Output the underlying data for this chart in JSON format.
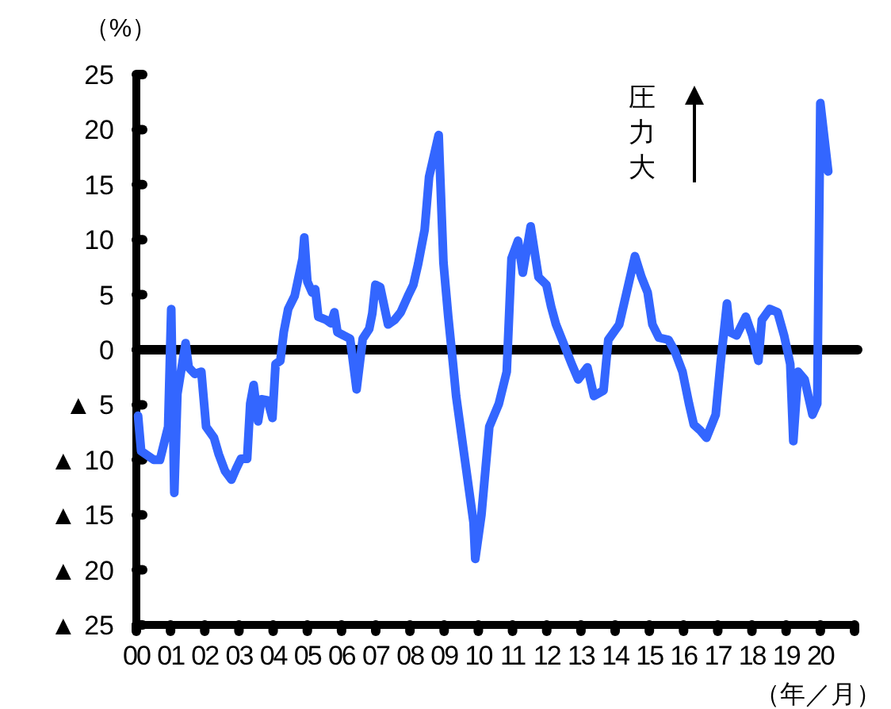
{
  "chart_data": {
    "type": "line",
    "xlabel": "（年／月）",
    "ylabel": "（%）",
    "annotations": [
      "圧力大"
    ],
    "xlim": [
      2000,
      2021
    ],
    "ylim": [
      -25,
      25
    ],
    "xticks": [
      {
        "value": 2000,
        "label": "00"
      },
      {
        "value": 2001,
        "label": "01"
      },
      {
        "value": 2002,
        "label": "02"
      },
      {
        "value": 2003,
        "label": "03"
      },
      {
        "value": 2004,
        "label": "04"
      },
      {
        "value": 2005,
        "label": "05"
      },
      {
        "value": 2006,
        "label": "06"
      },
      {
        "value": 2007,
        "label": "07"
      },
      {
        "value": 2008,
        "label": "08"
      },
      {
        "value": 2009,
        "label": "09"
      },
      {
        "value": 2010,
        "label": "10"
      },
      {
        "value": 2011,
        "label": "11"
      },
      {
        "value": 2012,
        "label": "12"
      },
      {
        "value": 2013,
        "label": "13"
      },
      {
        "value": 2014,
        "label": "14"
      },
      {
        "value": 2015,
        "label": "15"
      },
      {
        "value": 2016,
        "label": "16"
      },
      {
        "value": 2017,
        "label": "17"
      },
      {
        "value": 2018,
        "label": "18"
      },
      {
        "value": 2019,
        "label": "19"
      },
      {
        "value": 2020,
        "label": "20"
      },
      {
        "value": 2021,
        "label": null
      }
    ],
    "yticks": [
      {
        "value": -25,
        "label": "▲ 25"
      },
      {
        "value": -20,
        "label": "▲ 20"
      },
      {
        "value": -15,
        "label": "▲ 15"
      },
      {
        "value": -10,
        "label": "▲ 10"
      },
      {
        "value": -5,
        "label": "▲ 5"
      },
      0,
      5,
      10,
      15,
      20,
      25
    ],
    "ref_lines": [
      {
        "axis": "y",
        "value": 0,
        "color": "#000000"
      }
    ],
    "grid": false,
    "marker": "none",
    "line_style": "solid",
    "series": [
      {
        "color": "#3366ff",
        "x": [
          2000.05,
          2000.14,
          2000.51,
          2000.69,
          2000.93,
          2001.02,
          2001.11,
          2001.2,
          2001.44,
          2001.53,
          2001.71,
          2001.9,
          2002.04,
          2002.27,
          2002.41,
          2002.59,
          2002.78,
          2002.92,
          2003.06,
          2003.24,
          2003.33,
          2003.43,
          2003.56,
          2003.66,
          2003.84,
          2003.98,
          2004.07,
          2004.21,
          2004.31,
          2004.44,
          2004.63,
          2004.86,
          2004.91,
          2005.0,
          2005.14,
          2005.23,
          2005.32,
          2005.56,
          2005.69,
          2005.79,
          2005.88,
          2006.06,
          2006.25,
          2006.44,
          2006.62,
          2006.81,
          2006.9,
          2006.99,
          2007.13,
          2007.36,
          2007.55,
          2007.73,
          2007.96,
          2008.1,
          2008.24,
          2008.43,
          2008.56,
          2008.84,
          2008.98,
          2009.12,
          2009.26,
          2009.35,
          2009.86,
          2009.91,
          2010.09,
          2010.32,
          2010.6,
          2010.83,
          2010.97,
          2011.16,
          2011.3,
          2011.53,
          2011.76,
          2011.99,
          2012.13,
          2012.27,
          2012.73,
          2012.92,
          2013.19,
          2013.38,
          2013.66,
          2013.8,
          2014.12,
          2014.58,
          2014.77,
          2014.95,
          2015.09,
          2015.28,
          2015.56,
          2015.74,
          2015.97,
          2016.16,
          2016.3,
          2016.48,
          2016.67,
          2016.94,
          2017.08,
          2017.27,
          2017.36,
          2017.55,
          2017.82,
          2018.01,
          2018.19,
          2018.29,
          2018.52,
          2018.75,
          2018.94,
          2019.12,
          2019.21,
          2019.35,
          2019.54,
          2019.77,
          2019.91,
          2020.0,
          2020.23
        ],
        "values": [
          -6,
          -9.2,
          -10,
          -10,
          -7,
          3.7,
          -13,
          -4,
          0.6,
          -1.6,
          -2.2,
          -2,
          -7,
          -8,
          -9.5,
          -11,
          -11.8,
          -10.8,
          -9.9,
          -9.9,
          -4.9,
          -3.2,
          -6.5,
          -4.5,
          -4.6,
          -6.2,
          -1.3,
          -1,
          1.6,
          3.7,
          4.9,
          8.3,
          10.2,
          6.2,
          5.2,
          5.5,
          3,
          2.7,
          2.4,
          3.4,
          1.6,
          1.3,
          1,
          -3.6,
          1,
          1.9,
          3.3,
          5.9,
          5.7,
          2.3,
          2.7,
          3.4,
          5,
          5.9,
          7.8,
          10.9,
          15.7,
          19.5,
          7.9,
          3,
          -1.3,
          -4.2,
          -15.7,
          -19,
          -15,
          -7,
          -4.9,
          -2,
          8.3,
          9.9,
          7,
          11.2,
          6.6,
          5.9,
          3.9,
          2.3,
          -1.3,
          -2.7,
          -1.6,
          -4.2,
          -3.7,
          0.9,
          2.3,
          8.5,
          6.6,
          5.2,
          2.3,
          1.1,
          0.9,
          -0.1,
          -2,
          -4.9,
          -6.8,
          -7.3,
          -8,
          -5.9,
          -1.3,
          4.2,
          1.6,
          1.3,
          3,
          1.3,
          -1,
          2.7,
          3.7,
          3.4,
          1.3,
          -1.3,
          -8.3,
          -2,
          -2.7,
          -5.9,
          -4.9,
          22.4,
          16.2
        ]
      }
    ]
  }
}
